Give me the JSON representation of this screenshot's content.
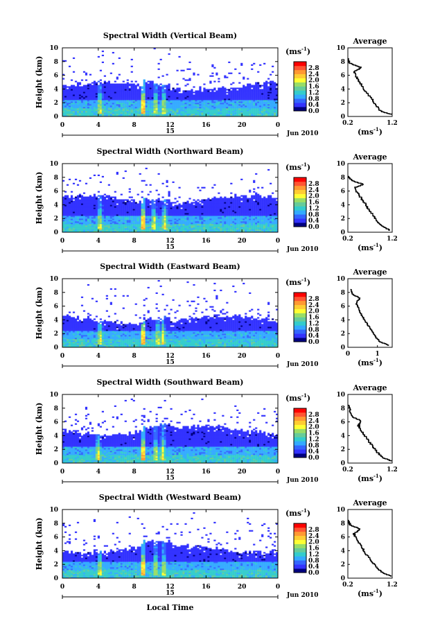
{
  "figure": {
    "x_title": "Local Time",
    "y_title": "Height (km)",
    "unit_label": "(ms",
    "unit_exp": "-1",
    "date_center": "15",
    "date_right": "Jun 2010",
    "avg_title": "Average"
  },
  "chart_data": [
    {
      "type": "heatmap",
      "title": "Spectral Width (Vertical Beam)",
      "xlabel": "",
      "ylabel": "Height (km)",
      "xlim": [
        0,
        24
      ],
      "ylim": [
        0,
        10
      ],
      "x_ticks": [
        "0",
        "4",
        "8",
        "12",
        "16",
        "20",
        "0"
      ],
      "y_ticks": [
        "0",
        "2",
        "4",
        "6",
        "8",
        "10"
      ],
      "colorbar": {
        "label": "(ms-1)",
        "range": [
          0,
          3.2
        ],
        "ticks": [
          "0.0",
          "0.4",
          "0.8",
          "1.2",
          "1.6",
          "2.0",
          "2.4",
          "2.8"
        ]
      },
      "echo_top_km": 4.4,
      "strong_columns_hour": [
        4.2,
        9.0,
        10.4,
        11.3
      ],
      "average_profile": {
        "title": "Average",
        "xlabel": "(ms-1)",
        "ylabel": "",
        "xlim": [
          0.2,
          1.2
        ],
        "ylim": [
          0,
          10
        ],
        "x_ticks": [
          "0.2",
          "1.2"
        ],
        "y_ticks": [
          "0",
          "2",
          "4",
          "6",
          "8",
          "10"
        ],
        "height_km": [
          0.3,
          0.8,
          1.5,
          2.5,
          3.5,
          4.5,
          5.5,
          6.5,
          7.2,
          7.8,
          8.5
        ],
        "width_ms": [
          1.2,
          0.95,
          0.85,
          0.75,
          0.62,
          0.52,
          0.42,
          0.34,
          0.5,
          0.24,
          0.2
        ]
      }
    },
    {
      "type": "heatmap",
      "title": "Spectral Width (Northward Beam)",
      "xlabel": "",
      "ylabel": "Height (km)",
      "xlim": [
        0,
        24
      ],
      "ylim": [
        0,
        10
      ],
      "x_ticks": [
        "0",
        "4",
        "8",
        "12",
        "16",
        "20",
        "0"
      ],
      "y_ticks": [
        "0",
        "2",
        "4",
        "6",
        "8",
        "10"
      ],
      "colorbar": {
        "label": "(ms-1)",
        "range": [
          0,
          3.2
        ],
        "ticks": [
          "0.0",
          "0.4",
          "0.8",
          "1.2",
          "1.6",
          "2.0",
          "2.4",
          "2.8"
        ]
      },
      "echo_top_km": 4.8,
      "strong_columns_hour": [
        4.2,
        9.0,
        10.2,
        11.4
      ],
      "average_profile": {
        "title": "Average",
        "xlabel": "(ms-1)",
        "ylabel": "",
        "xlim": [
          0.2,
          1.2
        ],
        "ylim": [
          0,
          10
        ],
        "x_ticks": [
          "0.2",
          "1.2"
        ],
        "y_ticks": [
          "0",
          "2",
          "4",
          "6",
          "8",
          "10"
        ],
        "height_km": [
          0.3,
          0.8,
          1.5,
          2.5,
          3.5,
          4.5,
          5.5,
          6.5,
          7.0,
          7.6,
          8.2
        ],
        "width_ms": [
          1.15,
          1.0,
          0.88,
          0.78,
          0.66,
          0.56,
          0.45,
          0.35,
          0.55,
          0.28,
          0.22
        ]
      }
    },
    {
      "type": "heatmap",
      "title": "Spectral Width (Eastward Beam)",
      "xlabel": "",
      "ylabel": "Height (km)",
      "xlim": [
        0,
        24
      ],
      "ylim": [
        0,
        10
      ],
      "x_ticks": [
        "0",
        "4",
        "8",
        "12",
        "16",
        "20",
        "0"
      ],
      "y_ticks": [
        "0",
        "2",
        "4",
        "6",
        "8",
        "10"
      ],
      "colorbar": {
        "label": "(ms-1)",
        "range": [
          0,
          3.2
        ],
        "ticks": [
          "0.0",
          "0.4",
          "0.8",
          "1.2",
          "1.6",
          "2.0",
          "2.4",
          "2.8"
        ]
      },
      "echo_top_km": 4.0,
      "strong_columns_hour": [
        4.2,
        9.0,
        10.6,
        11.2
      ],
      "average_profile": {
        "title": "Average",
        "xlabel": "(ms-1)",
        "ylabel": "",
        "xlim": [
          0,
          1.5
        ],
        "ylim": [
          0,
          10
        ],
        "x_ticks": [
          "0",
          "1"
        ],
        "y_ticks": [
          "0",
          "2",
          "4",
          "6",
          "8",
          "10"
        ],
        "height_km": [
          0.3,
          0.8,
          1.5,
          2.5,
          3.5,
          4.5,
          5.5,
          6.5,
          7.2,
          7.8,
          8.5
        ],
        "width_ms": [
          1.4,
          1.1,
          0.95,
          0.8,
          0.65,
          0.5,
          0.38,
          0.28,
          0.4,
          0.15,
          0.1
        ]
      }
    },
    {
      "type": "heatmap",
      "title": "Spectral Width (Southward Beam)",
      "xlabel": "",
      "ylabel": "Height (km)",
      "xlim": [
        0,
        24
      ],
      "ylim": [
        0,
        10
      ],
      "x_ticks": [
        "0",
        "4",
        "8",
        "12",
        "16",
        "20",
        "0"
      ],
      "y_ticks": [
        "0",
        "2",
        "4",
        "6",
        "8",
        "10"
      ],
      "colorbar": {
        "label": "(ms-1)",
        "range": [
          0,
          3.2
        ],
        "ticks": [
          "0.0",
          "0.4",
          "0.8",
          "1.2",
          "1.6",
          "2.0",
          "2.4",
          "2.8"
        ]
      },
      "echo_top_km": 4.8,
      "strong_columns_hour": [
        4.0,
        9.0,
        10.4,
        11.2
      ],
      "average_profile": {
        "title": "Average",
        "xlabel": "(ms-1)",
        "ylabel": "",
        "xlim": [
          0.2,
          1.2
        ],
        "ylim": [
          0,
          10
        ],
        "x_ticks": [
          "0.2",
          "1.2"
        ],
        "y_ticks": [
          "0",
          "2",
          "4",
          "6",
          "8",
          "10"
        ],
        "height_km": [
          0.3,
          0.8,
          1.5,
          2.5,
          3.5,
          4.5,
          5.5,
          6.2,
          6.8,
          7.6,
          8.5
        ],
        "width_ms": [
          1.2,
          1.0,
          0.88,
          0.76,
          0.64,
          0.54,
          0.44,
          0.5,
          0.3,
          0.25,
          0.22
        ]
      }
    },
    {
      "type": "heatmap",
      "title": "Spectral Width (Westward Beam)",
      "xlabel": "Local Time",
      "ylabel": "Height (km)",
      "xlim": [
        0,
        24
      ],
      "ylim": [
        0,
        10
      ],
      "x_ticks": [
        "0",
        "4",
        "8",
        "12",
        "16",
        "20",
        "0"
      ],
      "y_ticks": [
        "0",
        "2",
        "4",
        "6",
        "8",
        "10"
      ],
      "colorbar": {
        "label": "(ms-1)",
        "range": [
          0,
          3.2
        ],
        "ticks": [
          "0.0",
          "0.4",
          "0.8",
          "1.2",
          "1.6",
          "2.0",
          "2.4",
          "2.8"
        ]
      },
      "echo_top_km": 4.3,
      "strong_columns_hour": [
        4.2,
        9.0,
        10.4,
        11.3
      ],
      "average_profile": {
        "title": "Average",
        "xlabel": "(ms-1)",
        "ylabel": "",
        "xlim": [
          0.2,
          1.2
        ],
        "ylim": [
          0,
          10
        ],
        "x_ticks": [
          "0.2",
          "1.2"
        ],
        "y_ticks": [
          "0",
          "2",
          "4",
          "6",
          "8",
          "10"
        ],
        "height_km": [
          0.3,
          0.8,
          1.5,
          2.5,
          3.5,
          4.5,
          5.5,
          6.5,
          7.2,
          7.8,
          8.5
        ],
        "width_ms": [
          1.2,
          0.98,
          0.86,
          0.74,
          0.62,
          0.52,
          0.42,
          0.34,
          0.48,
          0.25,
          0.21
        ]
      }
    }
  ],
  "colors": {
    "scale": [
      "#000080",
      "#3333ff",
      "#3366ff",
      "#33aaff",
      "#33cccc",
      "#66cc99",
      "#99dd66",
      "#ffff33",
      "#ffcc33",
      "#ff9933",
      "#ff5533",
      "#ff0000"
    ],
    "low": "#3a4ad8"
  }
}
